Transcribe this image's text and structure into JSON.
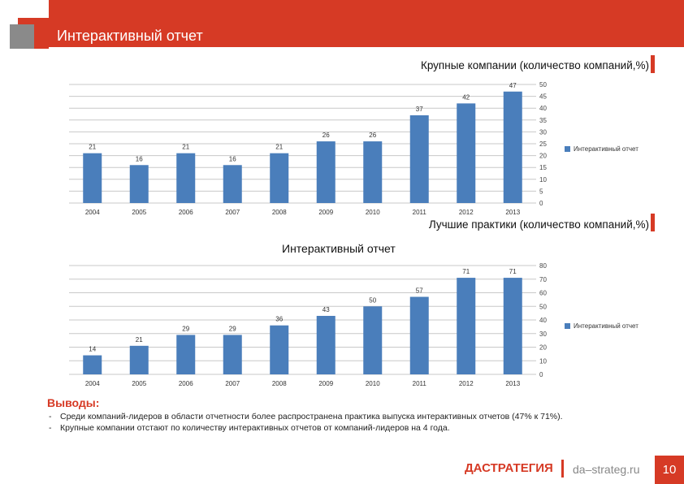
{
  "header": {
    "title": "Интерактивный отчет"
  },
  "chart_data": [
    {
      "type": "bar",
      "title": "Крупные компании (количество компаний,%)",
      "categories": [
        "2004",
        "2005",
        "2006",
        "2007",
        "2008",
        "2009",
        "2010",
        "2011",
        "2012",
        "2013"
      ],
      "series": [
        {
          "name": "Интерактивный отчет",
          "values": [
            21,
            16,
            21,
            16,
            21,
            26,
            26,
            37,
            42,
            47
          ]
        }
      ],
      "ylim": [
        0,
        50
      ],
      "yticks": [
        0,
        5,
        10,
        15,
        20,
        25,
        30,
        35,
        40,
        45,
        50
      ],
      "grid": true,
      "legend": "right",
      "color": "#4a7ebb"
    },
    {
      "type": "bar",
      "title": "Лучшие практики (количество компаний,%)",
      "subtitle": "Интерактивный отчет",
      "categories": [
        "2004",
        "2005",
        "2006",
        "2007",
        "2008",
        "2009",
        "2010",
        "2011",
        "2012",
        "2013"
      ],
      "series": [
        {
          "name": "Интерактивный отчет",
          "values": [
            14,
            21,
            29,
            29,
            36,
            43,
            50,
            57,
            71,
            71
          ]
        }
      ],
      "ylim": [
        0,
        80
      ],
      "yticks": [
        0,
        10,
        20,
        30,
        40,
        50,
        60,
        70,
        80
      ],
      "grid": true,
      "legend": "right",
      "color": "#4a7ebb"
    }
  ],
  "conclusions": {
    "title": "Выводы:",
    "items": [
      {
        "bullet": "-",
        "text": "Среди компаний-лидеров в области отчетности более распространена практика выпуска интерактивных отчетов (47% к 71%)."
      },
      {
        "bullet": "-",
        "text": "Крупные компании отстают по количеству интерактивных отчетов от компаний-лидеров на 4 года."
      }
    ]
  },
  "footer": {
    "logo_da": "ДА",
    "logo_rest": "СТРАТЕГИЯ",
    "site": "da–strateg.ru",
    "page": "10"
  }
}
